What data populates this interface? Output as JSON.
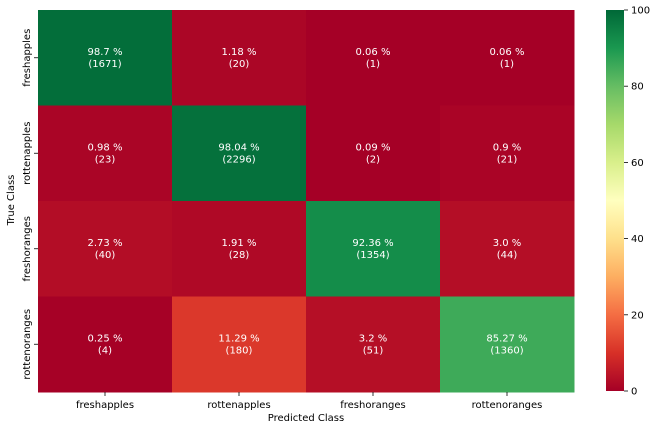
{
  "chart_data": {
    "type": "heatmap",
    "title": "",
    "xlabel": "Predicted Class",
    "ylabel": "True Class",
    "x_categories": [
      "freshapples",
      "rottenapples",
      "freshoranges",
      "rottenoranges"
    ],
    "y_categories": [
      "freshapples",
      "rottenapples",
      "freshoranges",
      "rottenoranges"
    ],
    "percent": [
      [
        98.7,
        1.18,
        0.06,
        0.06
      ],
      [
        0.98,
        98.04,
        0.09,
        0.9
      ],
      [
        2.73,
        1.91,
        92.36,
        3.0
      ],
      [
        0.25,
        11.29,
        3.2,
        85.27
      ]
    ],
    "percent_labels": [
      [
        "98.7 %",
        "1.18 %",
        "0.06 %",
        "0.06 %"
      ],
      [
        "0.98 %",
        "98.04 %",
        "0.09 %",
        "0.9 %"
      ],
      [
        "2.73 %",
        "1.91 %",
        "92.36 %",
        "3.0 %"
      ],
      [
        "0.25 %",
        "11.29 %",
        "3.2 %",
        "85.27 %"
      ]
    ],
    "count_labels": [
      [
        "(1671)",
        "(20)",
        "(1)",
        "(1)"
      ],
      [
        "(23)",
        "(2296)",
        "(2)",
        "(21)"
      ],
      [
        "(40)",
        "(28)",
        "(1354)",
        "(44)"
      ],
      [
        "(4)",
        "(180)",
        "(51)",
        "(1360)"
      ]
    ],
    "colormap": "RdYlGn",
    "colorbar": {
      "range": [
        0,
        100
      ],
      "ticks": [
        0,
        20,
        40,
        60,
        80,
        100
      ],
      "tick_labels": [
        "0",
        "20",
        "40",
        "60",
        "80",
        "100"
      ]
    }
  }
}
